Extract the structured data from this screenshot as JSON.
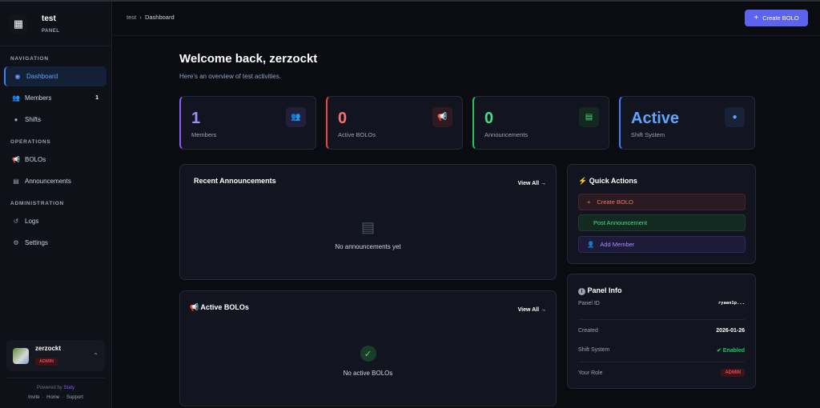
{
  "sidebar": {
    "brand": "test",
    "brand_sub": "PANEL",
    "sections": [
      {
        "title": "NAVIGATION",
        "items": [
          {
            "label": "Dashboard",
            "icon": "gauge-icon"
          },
          {
            "label": "Members",
            "icon": "users-icon",
            "badge": "1"
          },
          {
            "label": "Shifts",
            "icon": "clock-icon"
          }
        ]
      },
      {
        "title": "OPERATIONS",
        "items": [
          {
            "label": "BOLOs",
            "icon": "megaphone-icon"
          },
          {
            "label": "Announcements",
            "icon": "newspaper-icon"
          }
        ]
      },
      {
        "title": "ADMINISTRATION",
        "items": [
          {
            "label": "Logs",
            "icon": "history-icon"
          },
          {
            "label": "Settings",
            "icon": "gear-icon"
          }
        ]
      }
    ],
    "user": {
      "name": "zerzockt",
      "role": "ADMIN"
    },
    "footer": {
      "powered": "Powered by",
      "brand": "Staty",
      "links": [
        "Invite",
        "Home",
        "Support"
      ]
    }
  },
  "header": {
    "breadcrumb": [
      "test",
      "Dashboard"
    ],
    "create_button": "Create BOLO"
  },
  "main": {
    "title": "Welcome back, zerzockt",
    "subtitle": "Here's an overview of test activities.",
    "stats": [
      {
        "value": "1",
        "label": "Members",
        "color": "#a78bfa"
      },
      {
        "value": "0",
        "label": "Active BOLOs",
        "color": "#f87171"
      },
      {
        "value": "0",
        "label": "Announcements",
        "color": "#4ade80"
      },
      {
        "value": "Active",
        "label": "Shift System",
        "color": "#60a5fa"
      }
    ],
    "announcements": {
      "title": "Recent Announcements",
      "view_all": "View All",
      "empty": "No announcements yet"
    },
    "bolos": {
      "title": "Active BOLOs",
      "view_all": "View All",
      "empty": "No active BOLOs"
    },
    "quick_actions": {
      "title": "Quick Actions",
      "items": [
        "Create BOLO",
        "Post Announcement",
        "Add Member"
      ]
    },
    "panel_info": {
      "title": "Panel Info",
      "rows": [
        {
          "label": "Panel ID",
          "value": "ryaan1p..."
        },
        {
          "label": "Created",
          "value": "2026-01-26"
        },
        {
          "label": "Shift System",
          "value": "Enabled"
        },
        {
          "label": "Your Role",
          "value": "ADMIN"
        }
      ]
    }
  }
}
